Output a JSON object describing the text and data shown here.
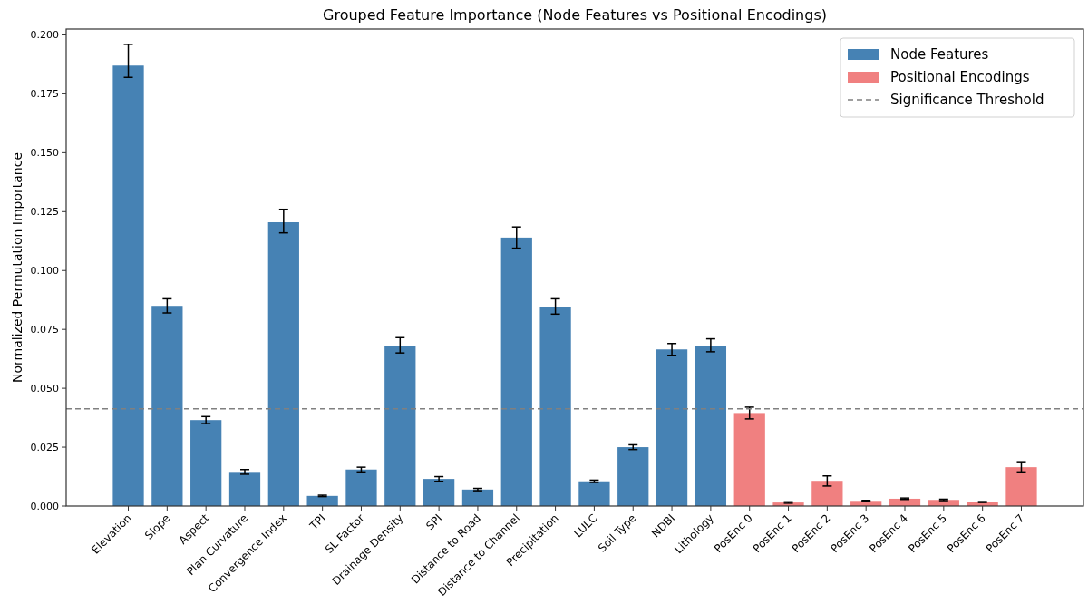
{
  "chart_data": {
    "type": "bar",
    "title": "Grouped Feature Importance (Node Features vs Positional Encodings)",
    "ylabel": "Normalized Permutation Importance",
    "categories": [
      "Elevation",
      "Slope",
      "Aspect",
      "Plan Curvature",
      "Convergence Index",
      "TPI",
      "SL Factor",
      "Drainage Density",
      "SPI",
      "Distance to Road",
      "Distance to Channel",
      "Precipitation",
      "LULC",
      "Soil Type",
      "NDBI",
      "Lithology",
      "PosEnc 0",
      "PosEnc 1",
      "PosEnc 2",
      "PosEnc 3",
      "PosEnc 4",
      "PosEnc 5",
      "PosEnc 6",
      "PosEnc 7"
    ],
    "series": [
      {
        "name": "Node Features",
        "color": "#4682b4",
        "values": [
          0.187,
          0.085,
          0.0365,
          0.0145,
          0.1205,
          0.0043,
          0.0155,
          0.068,
          0.0115,
          0.007,
          0.114,
          0.0845,
          0.0105,
          0.025,
          0.0665,
          0.068,
          null,
          null,
          null,
          null,
          null,
          null,
          null,
          null
        ],
        "errors": [
          [
            0.182,
            0.196
          ],
          0.003,
          0.0015,
          0.001,
          [
            0.116,
            0.126
          ],
          0.0003,
          0.001,
          [
            0.065,
            0.0715
          ],
          0.001,
          0.0005,
          [
            0.1095,
            0.1185
          ],
          [
            0.0815,
            0.088
          ],
          0.0005,
          0.001,
          0.0025,
          [
            0.0655,
            0.071
          ],
          null,
          null,
          null,
          null,
          null,
          null,
          null,
          null
        ]
      },
      {
        "name": "Positional Encodings",
        "color": "#f08080",
        "values": [
          null,
          null,
          null,
          null,
          null,
          null,
          null,
          null,
          null,
          null,
          null,
          null,
          null,
          null,
          null,
          null,
          0.0395,
          0.0015,
          0.0107,
          0.0022,
          0.0031,
          0.0026,
          0.0017,
          0.0165
        ],
        "errors": [
          null,
          null,
          null,
          null,
          null,
          null,
          null,
          null,
          null,
          null,
          null,
          null,
          null,
          null,
          null,
          null,
          0.0025,
          0.0003,
          [
            0.0085,
            0.0128
          ],
          0.0002,
          0.0003,
          0.0003,
          0.0002,
          [
            0.0145,
            0.0188
          ]
        ]
      }
    ],
    "ref_lines": [
      {
        "axis": "y",
        "value": 0.0413,
        "label": "Significance Threshold",
        "color": "#808080",
        "line_style": "dashed"
      }
    ],
    "ylim": [
      0,
      0.2025
    ],
    "yticks": [
      {
        "value": 0,
        "label": "0.000"
      },
      {
        "value": 0.025,
        "label": "0.025"
      },
      {
        "value": 0.05,
        "label": "0.050"
      },
      {
        "value": 0.075,
        "label": "0.075"
      },
      {
        "value": 0.1,
        "label": "0.100"
      },
      {
        "value": 0.125,
        "label": "0.125"
      },
      {
        "value": 0.15,
        "label": "0.150"
      },
      {
        "value": 0.175,
        "label": "0.175"
      },
      {
        "value": 0.2,
        "label": "0.200"
      }
    ],
    "grid": false,
    "legend": "top right"
  }
}
